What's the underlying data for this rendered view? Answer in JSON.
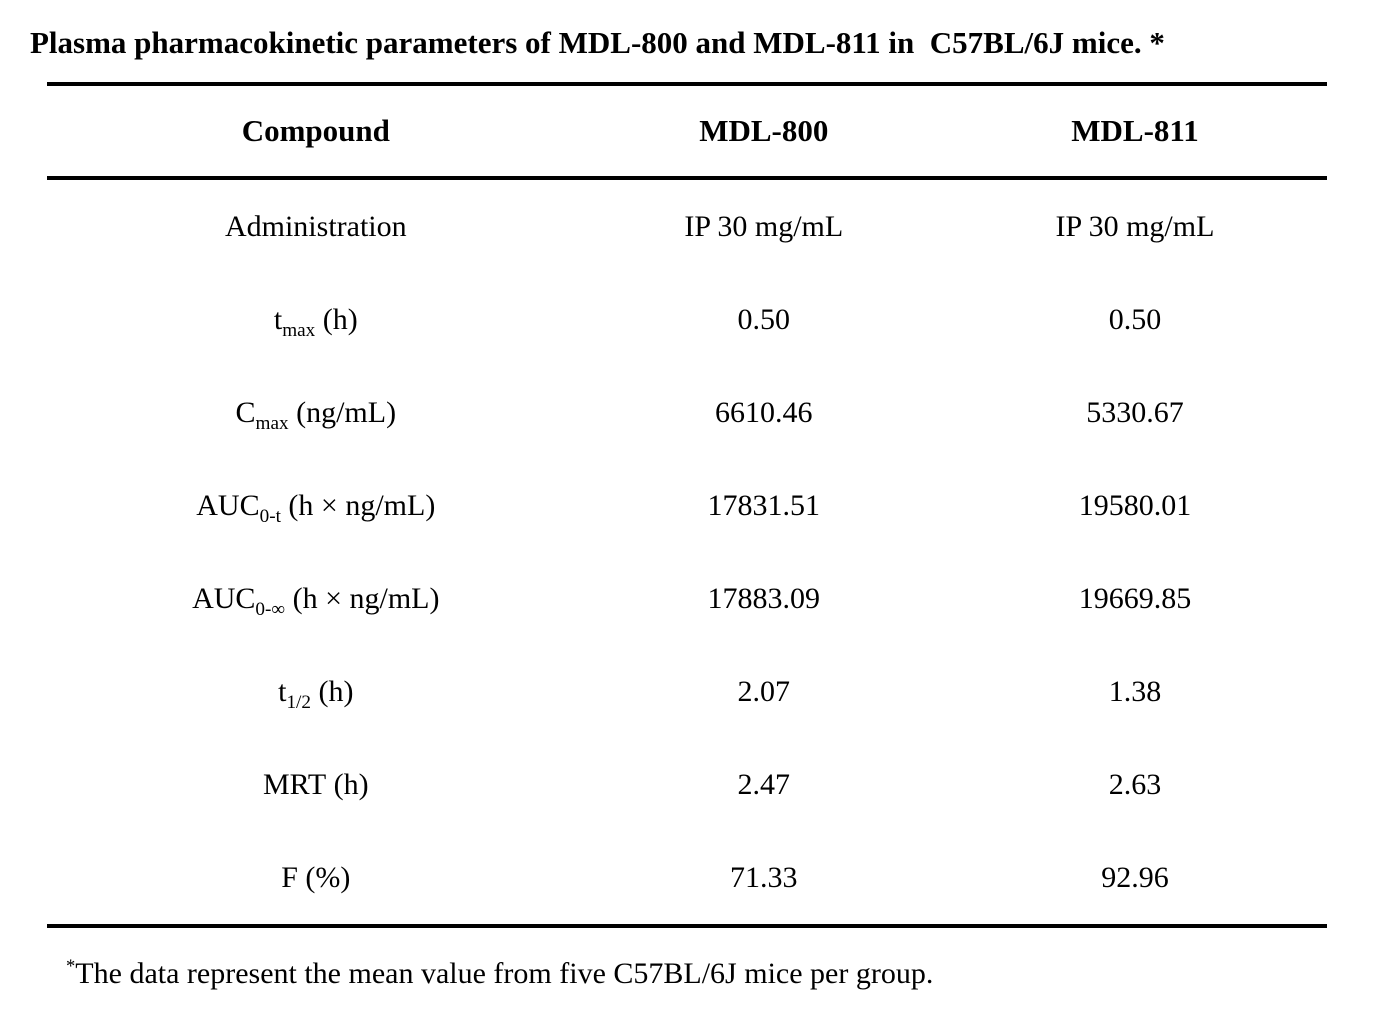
{
  "page": {
    "title": "Plasma pharmacokinetic parameters of MDL-800 and MDL-811 in  C57BL/6J mice. *"
  },
  "table": {
    "columns": [
      "Compound",
      "MDL-800",
      "MDL-811"
    ],
    "rows": [
      {
        "param": "Administration",
        "param_sub": "",
        "param_unit": "",
        "mdl800": "IP 30 mg/mL",
        "mdl811": "IP 30 mg/mL"
      },
      {
        "param": "t",
        "param_sub": "max",
        "param_unit": " (h)",
        "mdl800": "0.50",
        "mdl811": "0.50"
      },
      {
        "param": "C",
        "param_sub": "max",
        "param_unit": " (ng/mL)",
        "mdl800": "6610.46",
        "mdl811": "5330.67"
      },
      {
        "param": "AUC",
        "param_sub": "0-t",
        "param_unit": " (h × ng/mL)",
        "mdl800": "17831.51",
        "mdl811": "19580.01"
      },
      {
        "param": "AUC",
        "param_sub": "0-∞",
        "param_unit": " (h × ng/mL)",
        "mdl800": "17883.09",
        "mdl811": "19669.85"
      },
      {
        "param": "t",
        "param_sub": "1/2",
        "param_unit": " (h)",
        "mdl800": "2.07",
        "mdl811": "1.38"
      },
      {
        "param": "MRT",
        "param_sub": "",
        "param_unit": " (h)",
        "mdl800": "2.47",
        "mdl811": "2.63"
      },
      {
        "param": "F",
        "param_sub": "",
        "param_unit": " (%)",
        "mdl800": "71.33",
        "mdl811": "92.96"
      }
    ]
  },
  "footnote": {
    "marker": "*",
    "text": "The data represent the mean value from five C57BL/6J mice per group."
  },
  "colors": {
    "text": "#000000",
    "background": "#ffffff",
    "rule": "#000000"
  },
  "chart_data": {
    "type": "table",
    "title": "Plasma pharmacokinetic parameters of MDL-800 and MDL-811 in C57BL/6J mice.",
    "columns": [
      "Compound",
      "MDL-800",
      "MDL-811"
    ],
    "rows": [
      [
        "Administration",
        "IP 30 mg/mL",
        "IP 30 mg/mL"
      ],
      [
        "tmax (h)",
        0.5,
        0.5
      ],
      [
        "Cmax (ng/mL)",
        6610.46,
        5330.67
      ],
      [
        "AUC0-t (h × ng/mL)",
        17831.51,
        19580.01
      ],
      [
        "AUC0-∞ (h × ng/mL)",
        17883.09,
        19669.85
      ],
      [
        "t1/2 (h)",
        2.07,
        1.38
      ],
      [
        "MRT (h)",
        2.47,
        2.63
      ],
      [
        "F (%)",
        71.33,
        92.96
      ]
    ],
    "footnote": "The data represent the mean value from five C57BL/6J mice per group."
  }
}
